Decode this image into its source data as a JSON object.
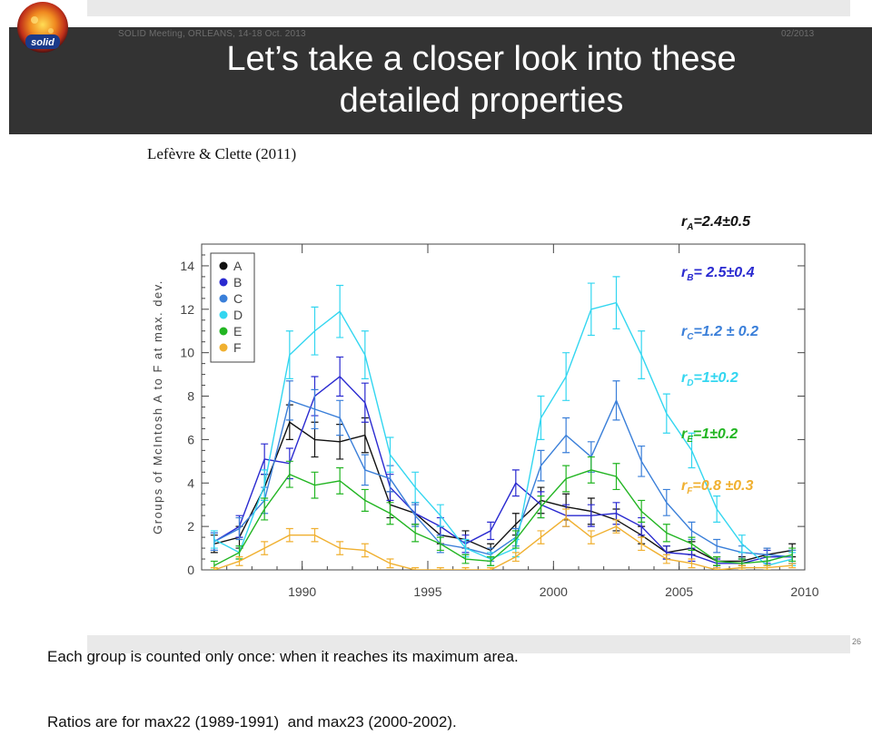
{
  "slide": {
    "meeting": "SOLID Meeting, ORLEANS, 14-18 Oct. 2013",
    "date": "02/2013",
    "title_line1": "Let’s take a closer look into these",
    "title_line2": "detailed properties",
    "citation": "Lefèvre & Clette (2011)",
    "logo_text": "solid",
    "caption_line1": "Each group is counted only once: when it reaches its maximum area.",
    "caption_line2": "Ratios are for max22 (1989-1991)  and max23 (2000-2002).",
    "slide_number": "26"
  },
  "ratios": [
    {
      "prefix": "r",
      "sub": "A",
      "text": "=2.4±0.5",
      "color": "#111111"
    },
    {
      "prefix": "r",
      "sub": "B",
      "text": "= 2.5±0.4",
      "color": "#2a2ad0"
    },
    {
      "prefix": "r",
      "sub": "C",
      "text": "=1.2 ± 0.2",
      "color": "#3a7fd9"
    },
    {
      "prefix": "r",
      "sub": "D",
      "text": "=1±0.2",
      "color": "#33d6f0"
    },
    {
      "prefix": "r",
      "sub": "E",
      "text": "=1±0.2",
      "color": "#22b522"
    },
    {
      "prefix": "r",
      "sub": "F",
      "text": "=0.8 ±0.3",
      "color": "#f0b030"
    }
  ],
  "chart_data": {
    "type": "line",
    "ylabel": "Groups of McIntosh A to F at max. dev.",
    "xlim": [
      1986,
      2010
    ],
    "ylim": [
      0,
      15
    ],
    "x_ticks": [
      1990,
      1995,
      2000,
      2005,
      2010
    ],
    "y_ticks": [
      0,
      2,
      4,
      6,
      8,
      10,
      12,
      14
    ],
    "legend_position": "top-left",
    "x": [
      1986.5,
      1987.5,
      1988.5,
      1989.5,
      1990.5,
      1991.5,
      1992.5,
      1993.5,
      1994.5,
      1995.5,
      1996.5,
      1997.5,
      1998.5,
      1999.5,
      2000.5,
      2001.5,
      2002.5,
      2003.5,
      2004.5,
      2005.5,
      2006.5,
      2007.5,
      2008.5,
      2009.5
    ],
    "series": [
      {
        "name": "A",
        "color": "#111111",
        "values": [
          1.2,
          1.5,
          3.8,
          6.8,
          6.0,
          5.9,
          6.2,
          3.0,
          2.6,
          1.6,
          1.4,
          0.9,
          2.1,
          3.2,
          2.9,
          2.7,
          2.3,
          1.6,
          0.8,
          1.0,
          0.4,
          0.4,
          0.7,
          0.9
        ],
        "errors": [
          0.4,
          0.5,
          0.6,
          0.8,
          0.8,
          0.8,
          0.8,
          0.6,
          0.5,
          0.4,
          0.4,
          0.3,
          0.5,
          0.6,
          0.6,
          0.6,
          0.5,
          0.4,
          0.3,
          0.3,
          0.2,
          0.2,
          0.3,
          0.3
        ]
      },
      {
        "name": "B",
        "color": "#2a2ad0",
        "values": [
          1.3,
          2.0,
          5.1,
          4.9,
          8.0,
          8.9,
          7.7,
          3.8,
          2.6,
          2.0,
          1.2,
          1.8,
          4.0,
          3.0,
          2.5,
          2.5,
          2.6,
          2.0,
          0.8,
          0.7,
          0.3,
          0.3,
          0.6,
          0.6
        ],
        "errors": [
          0.4,
          0.5,
          0.7,
          0.7,
          0.9,
          0.9,
          0.9,
          0.6,
          0.5,
          0.4,
          0.4,
          0.4,
          0.6,
          0.6,
          0.5,
          0.5,
          0.5,
          0.4,
          0.3,
          0.3,
          0.2,
          0.2,
          0.3,
          0.3
        ]
      },
      {
        "name": "C",
        "color": "#3a7fd9",
        "values": [
          1.3,
          1.9,
          3.2,
          7.8,
          7.4,
          7.0,
          4.6,
          4.2,
          2.5,
          1.2,
          1.0,
          0.7,
          1.5,
          4.8,
          6.2,
          5.2,
          7.8,
          5.0,
          3.1,
          1.8,
          1.1,
          0.8,
          0.7,
          0.6
        ],
        "errors": [
          0.4,
          0.5,
          0.6,
          0.9,
          0.9,
          0.8,
          0.7,
          0.6,
          0.5,
          0.4,
          0.3,
          0.3,
          0.4,
          0.7,
          0.8,
          0.7,
          0.9,
          0.7,
          0.6,
          0.4,
          0.3,
          0.3,
          0.3,
          0.3
        ]
      },
      {
        "name": "D",
        "color": "#33d6f0",
        "values": [
          1.4,
          0.8,
          3.9,
          9.9,
          11.0,
          11.9,
          9.9,
          5.3,
          3.8,
          2.5,
          1.0,
          0.5,
          1.0,
          7.0,
          8.9,
          12.0,
          12.3,
          9.9,
          7.2,
          5.5,
          2.8,
          1.2,
          0.2,
          0.5
        ],
        "errors": [
          0.4,
          0.3,
          0.7,
          1.1,
          1.1,
          1.2,
          1.1,
          0.8,
          0.7,
          0.5,
          0.4,
          0.3,
          0.4,
          1.0,
          1.1,
          1.2,
          1.2,
          1.1,
          0.9,
          0.8,
          0.6,
          0.4,
          0.2,
          0.3
        ]
      },
      {
        "name": "E",
        "color": "#22b522",
        "values": [
          0.2,
          0.8,
          2.8,
          4.4,
          3.9,
          4.1,
          3.2,
          2.6,
          1.7,
          1.2,
          0.5,
          0.4,
          1.4,
          2.9,
          4.2,
          4.6,
          4.3,
          2.7,
          1.7,
          1.2,
          0.4,
          0.3,
          0.4,
          0.7
        ],
        "errors": [
          0.2,
          0.3,
          0.5,
          0.6,
          0.6,
          0.6,
          0.5,
          0.5,
          0.4,
          0.3,
          0.2,
          0.2,
          0.4,
          0.5,
          0.6,
          0.6,
          0.6,
          0.5,
          0.4,
          0.3,
          0.2,
          0.2,
          0.2,
          0.3
        ]
      },
      {
        "name": "F",
        "color": "#f0b030",
        "values": [
          0.0,
          0.4,
          1.0,
          1.6,
          1.6,
          1.0,
          0.9,
          0.3,
          0.0,
          0.0,
          0.0,
          0.0,
          0.6,
          1.5,
          2.4,
          1.5,
          2.0,
          1.2,
          0.5,
          0.3,
          0.0,
          0.1,
          0.1,
          0.2
        ],
        "errors": [
          0.1,
          0.2,
          0.3,
          0.3,
          0.3,
          0.3,
          0.3,
          0.2,
          0.1,
          0.1,
          0.1,
          0.1,
          0.2,
          0.3,
          0.4,
          0.3,
          0.3,
          0.3,
          0.2,
          0.2,
          0.1,
          0.1,
          0.1,
          0.1
        ]
      }
    ]
  }
}
